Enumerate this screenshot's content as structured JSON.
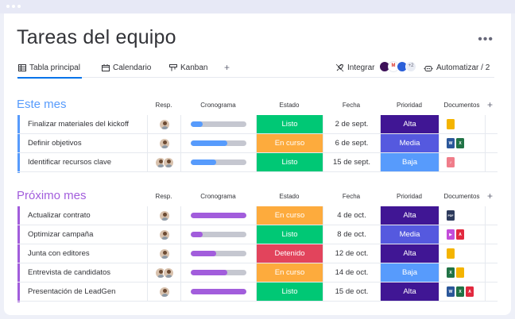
{
  "page": {
    "title": "Tareas del equipo",
    "more_label": "•••"
  },
  "tabs": [
    {
      "label": "Tabla principal"
    },
    {
      "label": "Calendario"
    },
    {
      "label": "Kanban"
    }
  ],
  "tab_add_label": "+",
  "toolbar": {
    "integrate_label": "Integrar",
    "apps_more": "+2",
    "automate_label": "Automatizar / 2"
  },
  "columns": {
    "owner": "Resp.",
    "timeline": "Cronograma",
    "status": "Estado",
    "date": "Fecha",
    "priority": "Prioridad",
    "docs": "Documentos",
    "add": "+"
  },
  "colors": {
    "blue_group": "#579bfc",
    "purple_group": "#a25ddc",
    "status_done": "#00c875",
    "status_working": "#fdab3d",
    "status_stuck": "#e2445c",
    "priority_high": "#401694",
    "priority_medium": "#5559df",
    "priority_low": "#579bfc"
  },
  "groups": [
    {
      "title": "Este mes",
      "color": "#579bfc",
      "rows": [
        {
          "name": "Finalizar materiales del kickoff",
          "owners": 1,
          "progress": 0.22,
          "status": "Listo",
          "status_color": "#00c875",
          "date": "2 de sept.",
          "priority": "Alta",
          "priority_color": "#401694",
          "docs": [
            "google-docs-icon"
          ]
        },
        {
          "name": "Definir objetivos",
          "owners": 1,
          "progress": 0.65,
          "status": "En curso",
          "status_color": "#fdab3d",
          "date": "6 de sept.",
          "priority": "Media",
          "priority_color": "#5559df",
          "docs": [
            "word-icon",
            "excel-icon"
          ]
        },
        {
          "name": "Identificar recursos clave",
          "owners": 2,
          "progress": 0.45,
          "status": "Listo",
          "status_color": "#00c875",
          "date": "15 de sept.",
          "priority": "Baja",
          "priority_color": "#579bfc",
          "docs": [
            "music-file-icon"
          ]
        }
      ]
    },
    {
      "title": "Próximo mes",
      "color": "#a25ddc",
      "rows": [
        {
          "name": "Actualizar contrato",
          "owners": 1,
          "progress": 1.0,
          "status": "En curso",
          "status_color": "#fdab3d",
          "date": "4 de oct.",
          "priority": "Alta",
          "priority_color": "#401694",
          "docs": [
            "pdf-dark-icon"
          ]
        },
        {
          "name": "Optimizar campaña",
          "owners": 1,
          "progress": 0.22,
          "status": "Listo",
          "status_color": "#00c875",
          "date": "8 de oct.",
          "priority": "Media",
          "priority_color": "#5559df",
          "docs": [
            "video-icon",
            "pdf-icon"
          ]
        },
        {
          "name": "Junta con editores",
          "owners": 1,
          "progress": 0.45,
          "status": "Detenido",
          "status_color": "#e2445c",
          "date": "12 de oct.",
          "priority": "Alta",
          "priority_color": "#401694",
          "docs": [
            "google-docs-icon"
          ]
        },
        {
          "name": "Entrevista de candidatos",
          "owners": 2,
          "progress": 0.65,
          "status": "En curso",
          "status_color": "#fdab3d",
          "date": "14 de oct.",
          "priority": "Baja",
          "priority_color": "#579bfc",
          "docs": [
            "excel-icon",
            "google-docs-icon"
          ]
        },
        {
          "name": "Presentación de LeadGen",
          "owners": 1,
          "progress": 1.0,
          "status": "Listo",
          "status_color": "#00c875",
          "date": "15 de oct.",
          "priority": "Alta",
          "priority_color": "#401694",
          "docs": [
            "word-icon",
            "excel-icon",
            "pdf-icon"
          ]
        }
      ]
    }
  ],
  "doc_labels": {
    "pdf_dark": "PDF"
  }
}
